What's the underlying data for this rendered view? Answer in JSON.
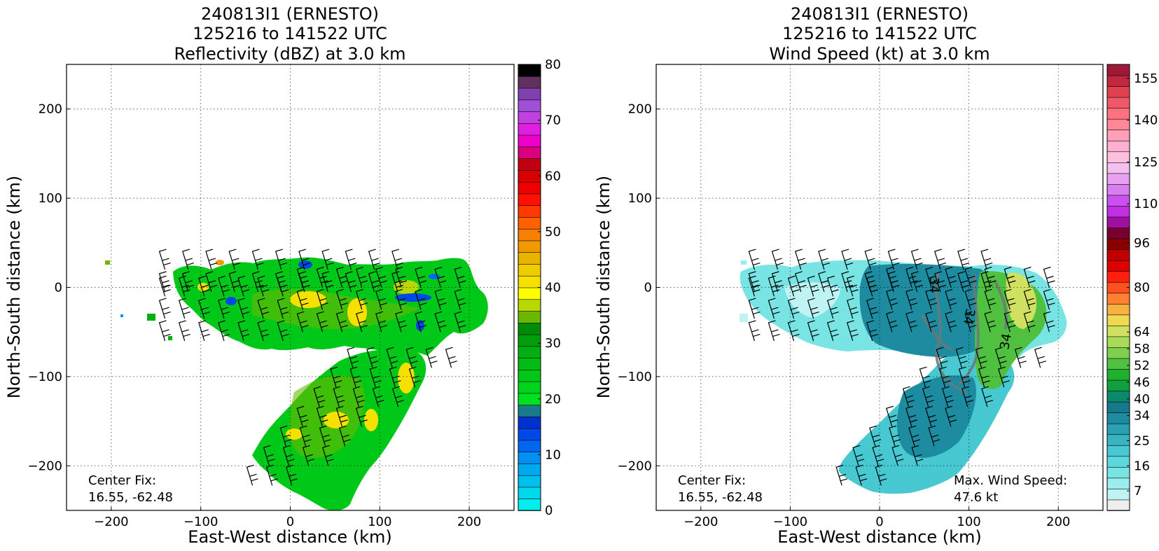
{
  "chart_data": [
    {
      "type": "heatmap",
      "title_lines": [
        "240813I1 (ERNESTO)",
        "125216 to 141522 UTC",
        "Reflectivity (dBZ) at 3.0 km"
      ],
      "xlabel": "East-West distance (km)",
      "ylabel": "North-South distance (km)",
      "xlim": [
        -250,
        250
      ],
      "ylim": [
        -250,
        250
      ],
      "xticks": [
        -200,
        -100,
        0,
        100,
        200
      ],
      "yticks": [
        -200,
        -100,
        0,
        100,
        200
      ],
      "xtick_labels": [
        "−200",
        "−100",
        "0",
        "100",
        "200"
      ],
      "ytick_labels": [
        "−200",
        "−100",
        "0",
        "100",
        "200"
      ],
      "grid": true,
      "annotation_lines": [
        "Center Fix:",
        "16.55, -62.48"
      ],
      "colorbar": {
        "colors": [
          "#00eeee",
          "#00d8ee",
          "#00c0ee",
          "#00a8f0",
          "#0090f0",
          "#0068f0",
          "#0048e8",
          "#0030d0",
          "#1a7a8a",
          "#00e020",
          "#00d41c",
          "#00c818",
          "#00bc14",
          "#00b010",
          "#009e0c",
          "#008c08",
          "#6cb800",
          "#b8d800",
          "#ffff00",
          "#f6e000",
          "#eecc00",
          "#e8b400",
          "#f09a00",
          "#f88000",
          "#ff6000",
          "#ff3a00",
          "#ff1000",
          "#ee0000",
          "#d80000",
          "#c00010",
          "#d8007c",
          "#ee00c8",
          "#e020e0",
          "#c040e0",
          "#a050d8",
          "#8040b0",
          "#603060",
          "#000000"
        ],
        "min": 0,
        "max": 80,
        "ticks": [
          0,
          10,
          20,
          30,
          40,
          50,
          60,
          70,
          80
        ],
        "tick_labels": [
          "0",
          "10",
          "20",
          "30",
          "40",
          "50",
          "60",
          "70",
          "80"
        ]
      }
    },
    {
      "type": "heatmap",
      "title_lines": [
        "240813I1 (ERNESTO)",
        "125216 to 141522 UTC",
        "Wind Speed (kt) at 3.0 km"
      ],
      "xlabel": "East-West distance (km)",
      "ylabel": "North-South distance (km)",
      "xlim": [
        -250,
        250
      ],
      "ylim": [
        -250,
        250
      ],
      "xticks": [
        -200,
        -100,
        0,
        100,
        200
      ],
      "yticks": [
        -200,
        -100,
        0,
        100,
        200
      ],
      "xtick_labels": [
        "−200",
        "−100",
        "0",
        "100",
        "200"
      ],
      "ytick_labels": [
        "−200",
        "−100",
        "0",
        "100",
        "200"
      ],
      "grid": true,
      "annotation_lines": [
        "Center Fix:",
        "16.55, -62.48"
      ],
      "max_wind_lines": [
        "Max. Wind Speed:",
        "47.6 kt"
      ],
      "contour_label": "34",
      "colorbar": {
        "colors": [
          "#eeeeee",
          "#c0f4f4",
          "#9ceeee",
          "#78e4e4",
          "#5cd8dc",
          "#48c8d0",
          "#38b4c0",
          "#2aa0b0",
          "#1e8ca0",
          "#167a8c",
          "#0a8a6a",
          "#10a040",
          "#20b030",
          "#50c040",
          "#80d050",
          "#a8dc58",
          "#d0e060",
          "#f0d850",
          "#f8b040",
          "#ff8030",
          "#ff5020",
          "#ff2010",
          "#e00000",
          "#c00000",
          "#8a0000",
          "#780030",
          "#a010a0",
          "#c030e0",
          "#cc50f0",
          "#d880f0",
          "#e8a0f0",
          "#f4c0f0",
          "#ffc0e0",
          "#ffb0d0",
          "#ffa0b8",
          "#ff8898",
          "#ff7080",
          "#f05868",
          "#e04050",
          "#c02840",
          "#a01838"
        ],
        "min": 0,
        "max": 160,
        "ticks": [
          7,
          16,
          25,
          34,
          40,
          46,
          52,
          58,
          64,
          80,
          96,
          110,
          125,
          140,
          155
        ],
        "tick_labels": [
          "7",
          "16",
          "25",
          "34",
          "40",
          "46",
          "52",
          "58",
          "64",
          "80",
          "96",
          "110",
          "125",
          "140",
          "155"
        ]
      }
    }
  ]
}
